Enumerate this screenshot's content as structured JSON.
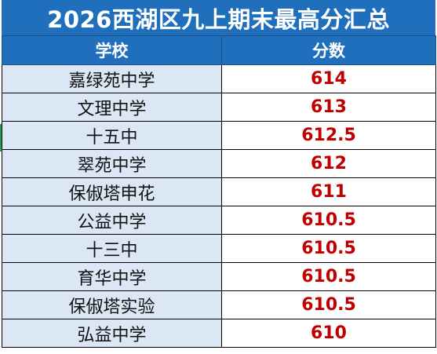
{
  "title": "2026西湖区九上期末最高分汇总",
  "headers": {
    "school": "学校",
    "score": "分数"
  },
  "rows": [
    {
      "school": "嘉绿苑中学",
      "score": "614"
    },
    {
      "school": "文理中学",
      "score": "613"
    },
    {
      "school": "十五中",
      "score": "612.5"
    },
    {
      "school": "翠苑中学",
      "score": "612"
    },
    {
      "school": "保俶塔申花",
      "score": "611"
    },
    {
      "school": "公益中学",
      "score": "610.5"
    },
    {
      "school": "十三中",
      "score": "610.5"
    },
    {
      "school": "育华中学",
      "score": "610.5"
    },
    {
      "school": "保俶塔实验",
      "score": "610.5"
    },
    {
      "school": "弘益中学",
      "score": "610"
    }
  ],
  "colors": {
    "header_bg": "#1f6fbd",
    "school_cell_bg": "#dbe7f5",
    "score_text": "#c00000"
  }
}
